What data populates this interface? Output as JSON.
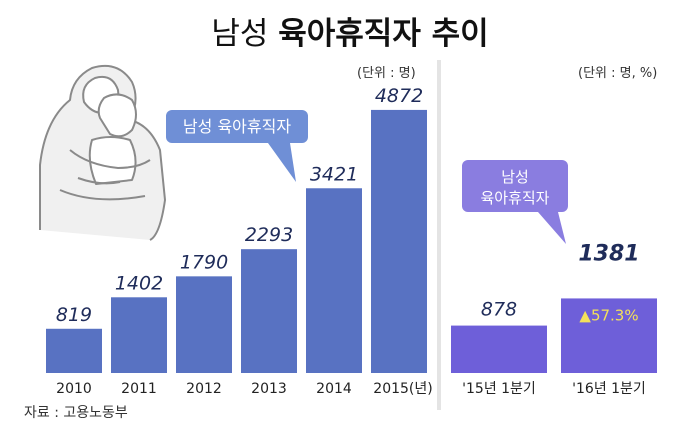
{
  "title": {
    "part1": "남성",
    "part2": "육아휴직자 추이"
  },
  "source": "자료 : 고용노동부",
  "colors": {
    "bar_blue": "#5872c2",
    "bar_purple": "#6e5fd9",
    "callout_fill": "#6f8fd6",
    "callout_purple": "#8a7de0",
    "badge_yellow": "#f3e05a",
    "text_dark": "#1f2c5a"
  },
  "chart_data": [
    {
      "type": "bar",
      "title": "남성 육아휴직자 추이",
      "unit_label": "(단위 : 명)",
      "categories": [
        "2010",
        "2011",
        "2012",
        "2013",
        "2014",
        "2015(년)"
      ],
      "values": [
        819,
        1402,
        1790,
        2293,
        3421,
        4872
      ],
      "value_labels": [
        "819",
        "1402",
        "1790",
        "2293",
        "3421",
        "4872"
      ],
      "callout": "남성 육아휴직자",
      "ylim": [
        0,
        5000
      ],
      "grid": false
    },
    {
      "type": "bar",
      "unit_label": "(단위 : 명, %)",
      "categories": [
        "'15년 1분기",
        "'16년 1분기"
      ],
      "values": [
        878,
        1381
      ],
      "value_labels": [
        "878",
        "1381"
      ],
      "callout_lines": [
        "남성",
        "육아휴직자"
      ],
      "badge": "▲57.3%",
      "ylim": [
        0,
        5000
      ],
      "grid": false
    }
  ]
}
